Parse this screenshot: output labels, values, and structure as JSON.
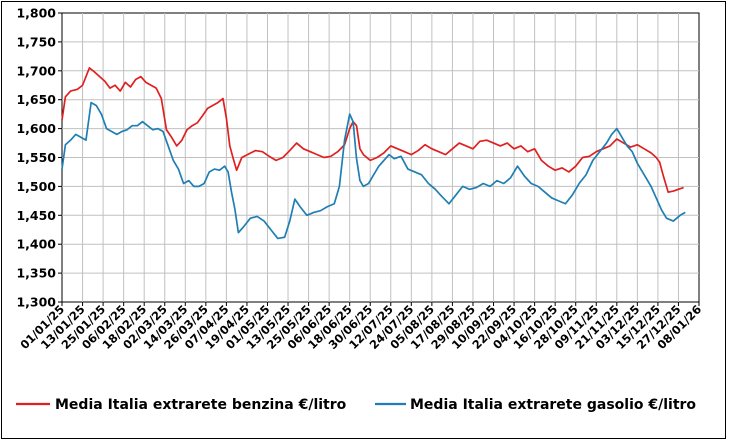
{
  "colors": {
    "benzina": "#e02020",
    "gasolio": "#1f7fb4",
    "grid": "#c0c0c0",
    "axis": "#000000"
  },
  "chart_data": {
    "type": "line",
    "title": "",
    "xlabel": "",
    "ylabel": "",
    "ylim": [
      1.3,
      1.8
    ],
    "yticks": [
      "1,300",
      "1,350",
      "1,400",
      "1,450",
      "1,500",
      "1,550",
      "1,600",
      "1,650",
      "1,700",
      "1,750",
      "1,800"
    ],
    "xticks": [
      "01/01/25",
      "13/01/25",
      "25/01/25",
      "06/02/25",
      "18/02/25",
      "02/03/25",
      "14/03/25",
      "26/03/25",
      "07/04/25",
      "19/04/25",
      "01/05/25",
      "13/05/25",
      "25/05/25",
      "06/06/25",
      "18/06/25",
      "30/06/25",
      "12/07/25",
      "24/07/25",
      "05/08/25",
      "17/08/25",
      "29/08/25",
      "10/09/25",
      "22/09/25",
      "04/10/25",
      "16/10/25",
      "28/10/25",
      "09/11/25",
      "21/11/25",
      "03/12/25",
      "15/12/25",
      "27/12/25",
      "08/01/26"
    ],
    "grid": true,
    "legend_position": "bottom",
    "series": [
      {
        "name": "Media Italia extrarete benzina €/litro",
        "color": "#e02020",
        "x": [
          "01/01/25",
          "03/01/25",
          "06/01/25",
          "10/01/25",
          "13/01/25",
          "17/01/25",
          "20/01/25",
          "23/01/25",
          "26/01/25",
          "29/01/25",
          "01/02/25",
          "04/02/25",
          "07/02/25",
          "10/02/25",
          "13/02/25",
          "16/02/25",
          "19/02/25",
          "22/02/25",
          "25/02/25",
          "28/02/25",
          "03/03/25",
          "06/03/25",
          "09/03/25",
          "12/03/25",
          "15/03/25",
          "18/03/25",
          "21/03/25",
          "24/03/25",
          "27/03/25",
          "30/03/25",
          "02/04/25",
          "05/04/25",
          "07/04/25",
          "09/04/25",
          "11/04/25",
          "13/04/25",
          "16/04/25",
          "20/04/25",
          "24/04/25",
          "28/04/25",
          "02/05/25",
          "06/05/25",
          "10/05/25",
          "14/05/25",
          "18/05/25",
          "22/05/25",
          "26/05/25",
          "30/05/25",
          "03/06/25",
          "07/06/25",
          "11/06/25",
          "15/06/25",
          "18/06/25",
          "20/06/25",
          "22/06/25",
          "24/06/25",
          "26/06/25",
          "30/06/25",
          "04/07/25",
          "08/07/25",
          "12/07/25",
          "16/07/25",
          "20/07/25",
          "24/07/25",
          "28/07/25",
          "01/08/25",
          "05/08/25",
          "09/08/25",
          "13/08/25",
          "17/08/25",
          "21/08/25",
          "25/08/25",
          "29/08/25",
          "02/09/25",
          "06/09/25",
          "10/09/25",
          "14/09/25",
          "18/09/25",
          "22/09/25",
          "26/09/25",
          "30/09/25",
          "04/10/25",
          "08/10/25",
          "12/10/25",
          "16/10/25",
          "20/10/25",
          "24/10/25",
          "28/10/25",
          "01/11/25",
          "05/11/25",
          "09/11/25",
          "13/11/25",
          "17/11/25",
          "21/11/25",
          "25/11/25",
          "29/11/25",
          "03/12/25",
          "07/12/25",
          "11/12/25",
          "14/12/25",
          "16/12/25",
          "18/12/25",
          "21/12/25",
          "24/12/25",
          "27/12/25",
          "30/12/25"
        ],
        "values": [
          1.615,
          1.655,
          1.665,
          1.668,
          1.675,
          1.705,
          1.698,
          1.69,
          1.682,
          1.67,
          1.675,
          1.665,
          1.68,
          1.672,
          1.685,
          1.69,
          1.68,
          1.675,
          1.67,
          1.652,
          1.598,
          1.585,
          1.57,
          1.58,
          1.598,
          1.605,
          1.61,
          1.622,
          1.635,
          1.64,
          1.645,
          1.652,
          1.618,
          1.57,
          1.548,
          1.528,
          1.55,
          1.556,
          1.562,
          1.56,
          1.552,
          1.545,
          1.55,
          1.562,
          1.575,
          1.565,
          1.56,
          1.555,
          1.55,
          1.552,
          1.56,
          1.572,
          1.6,
          1.612,
          1.605,
          1.565,
          1.555,
          1.545,
          1.55,
          1.558,
          1.57,
          1.565,
          1.56,
          1.555,
          1.562,
          1.572,
          1.565,
          1.56,
          1.555,
          1.565,
          1.575,
          1.57,
          1.565,
          1.578,
          1.58,
          1.575,
          1.57,
          1.575,
          1.565,
          1.57,
          1.56,
          1.565,
          1.545,
          1.535,
          1.528,
          1.532,
          1.525,
          1.535,
          1.55,
          1.552,
          1.56,
          1.565,
          1.57,
          1.582,
          1.575,
          1.568,
          1.572,
          1.565,
          1.558,
          1.55,
          1.542,
          1.52,
          1.49,
          1.492,
          1.495,
          1.498
        ]
      },
      {
        "name": "Media Italia extrarete gasolio €/litro",
        "color": "#1f7fb4",
        "x": [
          "01/01/25",
          "03/01/25",
          "06/01/25",
          "09/01/25",
          "12/01/25",
          "15/01/25",
          "18/01/25",
          "21/01/25",
          "24/01/25",
          "27/01/25",
          "30/01/25",
          "02/02/25",
          "05/02/25",
          "08/02/25",
          "11/02/25",
          "14/02/25",
          "17/02/25",
          "20/02/25",
          "23/02/25",
          "26/02/25",
          "01/03/25",
          "04/03/25",
          "07/03/25",
          "10/03/25",
          "13/03/25",
          "16/03/25",
          "19/03/25",
          "22/03/25",
          "25/03/25",
          "28/03/25",
          "31/03/25",
          "03/04/25",
          "06/04/25",
          "08/04/25",
          "10/04/25",
          "12/04/25",
          "14/04/25",
          "17/04/25",
          "21/04/25",
          "25/04/25",
          "29/04/25",
          "03/05/25",
          "07/05/25",
          "11/05/25",
          "14/05/25",
          "17/05/25",
          "20/05/25",
          "24/05/25",
          "28/05/25",
          "01/06/25",
          "05/06/25",
          "09/06/25",
          "12/06/25",
          "15/06/25",
          "18/06/25",
          "20/06/25",
          "22/06/25",
          "24/06/25",
          "26/06/25",
          "29/06/25",
          "02/07/25",
          "05/07/25",
          "08/07/25",
          "11/07/25",
          "14/07/25",
          "18/07/25",
          "22/07/25",
          "26/07/25",
          "30/07/25",
          "03/08/25",
          "07/08/25",
          "11/08/25",
          "15/08/25",
          "19/08/25",
          "23/08/25",
          "27/08/25",
          "31/08/25",
          "04/09/25",
          "08/09/25",
          "12/09/25",
          "16/09/25",
          "20/09/25",
          "24/09/25",
          "28/09/25",
          "02/10/25",
          "06/10/25",
          "10/10/25",
          "14/10/25",
          "18/10/25",
          "22/10/25",
          "26/10/25",
          "30/10/25",
          "03/11/25",
          "07/11/25",
          "11/11/25",
          "15/11/25",
          "18/11/25",
          "21/11/25",
          "24/11/25",
          "27/11/25",
          "30/11/25",
          "03/12/25",
          "07/12/25",
          "11/12/25",
          "14/12/25",
          "17/12/25",
          "20/12/25",
          "24/12/25",
          "28/12/25",
          "31/12/25"
        ],
        "values": [
          1.53,
          1.572,
          1.58,
          1.59,
          1.585,
          1.58,
          1.645,
          1.64,
          1.625,
          1.6,
          1.595,
          1.59,
          1.595,
          1.598,
          1.605,
          1.605,
          1.612,
          1.605,
          1.598,
          1.6,
          1.595,
          1.57,
          1.545,
          1.53,
          1.505,
          1.51,
          1.5,
          1.5,
          1.505,
          1.525,
          1.53,
          1.528,
          1.535,
          1.525,
          1.49,
          1.46,
          1.42,
          1.43,
          1.445,
          1.448,
          1.44,
          1.425,
          1.41,
          1.412,
          1.44,
          1.478,
          1.465,
          1.45,
          1.455,
          1.458,
          1.465,
          1.47,
          1.5,
          1.58,
          1.625,
          1.612,
          1.548,
          1.51,
          1.5,
          1.505,
          1.52,
          1.535,
          1.545,
          1.555,
          1.548,
          1.552,
          1.53,
          1.525,
          1.52,
          1.505,
          1.495,
          1.482,
          1.47,
          1.485,
          1.5,
          1.495,
          1.498,
          1.505,
          1.5,
          1.51,
          1.505,
          1.515,
          1.535,
          1.518,
          1.505,
          1.5,
          1.49,
          1.48,
          1.475,
          1.47,
          1.485,
          1.505,
          1.52,
          1.545,
          1.56,
          1.575,
          1.59,
          1.6,
          1.585,
          1.57,
          1.56,
          1.54,
          1.52,
          1.5,
          1.48,
          1.46,
          1.445,
          1.44,
          1.45,
          1.455
        ]
      }
    ]
  }
}
